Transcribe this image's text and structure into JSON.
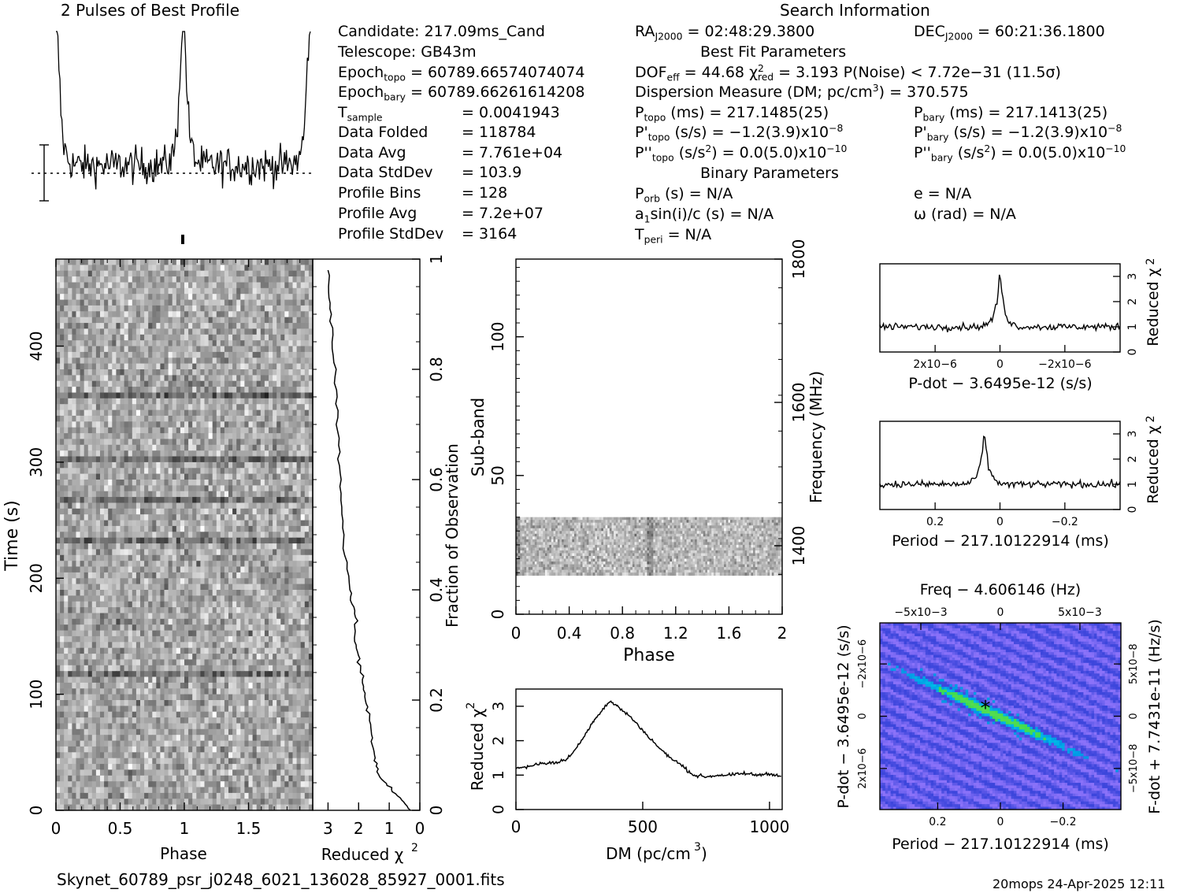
{
  "titles": {
    "profile": "2 Pulses of Best Profile",
    "search": "Search Information",
    "best_fit": "Best Fit Parameters",
    "binary": "Binary Parameters"
  },
  "info_left": {
    "candidate": "Candidate:  217.09ms_Cand",
    "telescope": "Telescope:  GB43m",
    "epoch_topo_label": "Epoch",
    "epoch_topo_sub": "topo",
    "epoch_topo_val": " = 60789.66574074074",
    "epoch_bary_label": "Epoch",
    "epoch_bary_sub": "bary",
    "epoch_bary_val": " = 60789.66261614208",
    "tsample_label": "T",
    "tsample_sub": "sample",
    "tsample_val": "=  0.0041943",
    "rows": [
      {
        "label": "Data Folded",
        "value": "=  118784"
      },
      {
        "label": "Data Avg",
        "value": "=  7.761e+04"
      },
      {
        "label": "Data StdDev",
        "value": "=  103.9"
      },
      {
        "label": "Profile Bins",
        "value": "=  128"
      },
      {
        "label": "Profile Avg",
        "value": "=  7.2e+07"
      },
      {
        "label": "Profile StdDev",
        "value": "=  3164"
      }
    ]
  },
  "info_mid": {
    "ra_label": "RA",
    "ra_sub": "J2000",
    "ra_val": " = 02:48:29.3800",
    "dof": "DOF",
    "dof_sub": "eff",
    "dof_val": " = 44.68  ",
    "chi": "χ",
    "chi_sup": "2",
    "chi_sub": "red",
    "chi_val": " = 3.193  P(Noise) < 7.72e−31  (11.5σ)",
    "dm_line": "Dispersion Measure (DM; pc/cm",
    "dm_sup": "3",
    "dm_val": ") = 370.575",
    "ptopo": "P",
    "ptopo_sub": "topo",
    "ptopo_val": " (ms) =  217.1485(25)",
    "pdtopo": "P'",
    "pdtopo_sub": "topo",
    "pdtopo_val": " (s/s) = −1.2(3.9)x10",
    "pdtopo_exp": "−8",
    "pddtopo": "P''",
    "pddtopo_sub": "topo",
    "pddtopo_val": " (s/s",
    "pddtopo_sup": "2",
    "pddtopo_val2": ") = 0.0(5.0)x10",
    "pddtopo_exp": "−10",
    "porb": "P",
    "porb_sub": "orb",
    "porb_val": " (s) = N/A",
    "a1": "a",
    "a1_sub": "1",
    "a1_val": "sin(i)/c (s) = N/A",
    "tperi": "T",
    "tperi_sub": "peri",
    "tperi_val": " = N/A"
  },
  "info_right": {
    "dec_label": "DEC",
    "dec_sub": "J2000",
    "dec_val": " = 60:21:36.1800",
    "pbary": "P",
    "pbary_sub": "bary",
    "pbary_val": " (ms) =  217.1413(25)",
    "pdbary": "P'",
    "pdbary_sub": "bary",
    "pdbary_val": " (s/s) = −1.2(3.9)x10",
    "pdbary_exp": "−8",
    "pddbary": "P''",
    "pddbary_sub": "bary",
    "pddbary_val": " (s/s",
    "pddbary_sup": "2",
    "pddbary_val2": ") = 0.0(5.0)x10",
    "pddbary_exp": "−10",
    "e": "e = N/A",
    "omega": "ω (rad) = N/A"
  },
  "footer": {
    "filename": "Skynet_60789_psr_j0248_6021_136028_85927_0001.fits",
    "stamp": "20mops 24-Apr-2025 12:11"
  },
  "chart_data": [
    {
      "type": "line",
      "name_key": "profile",
      "xlabel": "",
      "ylabel": "",
      "xlim": [
        0,
        2
      ],
      "grid": false,
      "note_values": "two cycles; peaks at phase 0 and 1",
      "peaks": [
        0.0,
        1.0
      ]
    },
    {
      "type": "heatmap",
      "xlabel": "Phase",
      "ylabel": "Time (s)",
      "xlim": [
        0,
        2
      ],
      "ylim": [
        0,
        475
      ],
      "xticks": [
        "0",
        "0.5",
        "1",
        "1.5"
      ],
      "yticks": [
        "0",
        "100",
        "200",
        "300",
        "400"
      ],
      "colormap": "grayscale"
    },
    {
      "type": "line",
      "xlabel": "Reduced χ2",
      "ylabel": "Fraction of Observation",
      "xlim": [
        3.5,
        0
      ],
      "ylim": [
        0,
        1
      ],
      "xticks": [
        "3",
        "2",
        "1",
        "0"
      ],
      "yticks": [
        "0",
        "0.2",
        "0.4",
        "0.6",
        "0.8",
        "1"
      ],
      "x": [
        0.3,
        0.8,
        1.3,
        1.5,
        1.6,
        1.8,
        1.9,
        2.1,
        2.1,
        2.3,
        2.5,
        2.6,
        2.7,
        2.8,
        2.9,
        3.0
      ],
      "y": [
        0.0,
        0.03,
        0.06,
        0.1,
        0.15,
        0.2,
        0.25,
        0.3,
        0.35,
        0.4,
        0.5,
        0.6,
        0.7,
        0.8,
        0.9,
        0.98
      ]
    },
    {
      "type": "heatmap",
      "xlabel": "Phase",
      "ylabel": "Sub-band",
      "y2label": "Frequency (MHz)",
      "xlim": [
        0,
        2
      ],
      "ylim": [
        0,
        128
      ],
      "xticks": [
        "0",
        "0.4",
        "0.8",
        "1.2",
        "1.6",
        "2"
      ],
      "yticks": [
        "0",
        "50",
        "100"
      ],
      "y2ticks": [
        "1400",
        "1600",
        "1800"
      ],
      "band_subbands": [
        14,
        35
      ]
    },
    {
      "type": "line",
      "xlabel": "DM (pc/cm3)",
      "ylabel": "Reduced χ2",
      "xlim": [
        0,
        1050
      ],
      "ylim": [
        0,
        3.5
      ],
      "xticks": [
        "0",
        "500",
        "1000"
      ],
      "yticks": [
        "0",
        "1",
        "2",
        "3"
      ],
      "x": [
        0,
        50,
        100,
        150,
        200,
        250,
        300,
        340,
        370,
        400,
        450,
        500,
        550,
        600,
        650,
        700,
        750,
        800,
        850,
        900,
        950,
        1000,
        1050
      ],
      "y": [
        1.2,
        1.25,
        1.35,
        1.35,
        1.45,
        1.9,
        2.5,
        2.9,
        3.15,
        3.0,
        2.7,
        2.3,
        1.9,
        1.55,
        1.3,
        1.0,
        0.95,
        1.0,
        1.0,
        1.05,
        1.0,
        1.05,
        0.95
      ]
    },
    {
      "type": "line",
      "xlabel": "P-dot − 3.6495e-12 (s/s)",
      "ylabel": "Reduced χ2",
      "ylim": [
        0,
        3.5
      ],
      "xticks": [
        "2x10−6",
        "0",
        "−2x10−6"
      ],
      "yticks": [
        "0",
        "1",
        "2",
        "3"
      ],
      "peak_y": 3.2
    },
    {
      "type": "line",
      "xlabel": "Period − 217.10122914 (ms)",
      "ylabel": "Reduced χ2",
      "ylim": [
        0,
        3.5
      ],
      "xticks": [
        "0.2",
        "0",
        "−0.2"
      ],
      "yticks": [
        "0",
        "1",
        "2",
        "3"
      ],
      "peak_x": 0.05,
      "peak_y": 3.1
    },
    {
      "type": "heatmap",
      "title": "Freq − 4.606146 (Hz)",
      "xlabel": "Period − 217.10122914 (ms)",
      "ylabel": "P-dot − 3.6495e-12 (s/s)",
      "y2label": "F-dot + 7.7431e-11 (Hz/s)",
      "xticks": [
        "0.2",
        "0",
        "−0.2"
      ],
      "x2ticks": [
        "−5x10−3",
        "0",
        "5x10−3"
      ],
      "yticks": [
        "−2x10−6",
        "0",
        "2x10−6"
      ],
      "y2ticks": [
        "5x10−8",
        "0",
        "−5x10−8"
      ],
      "colormap": "blue-cyan-green"
    }
  ]
}
